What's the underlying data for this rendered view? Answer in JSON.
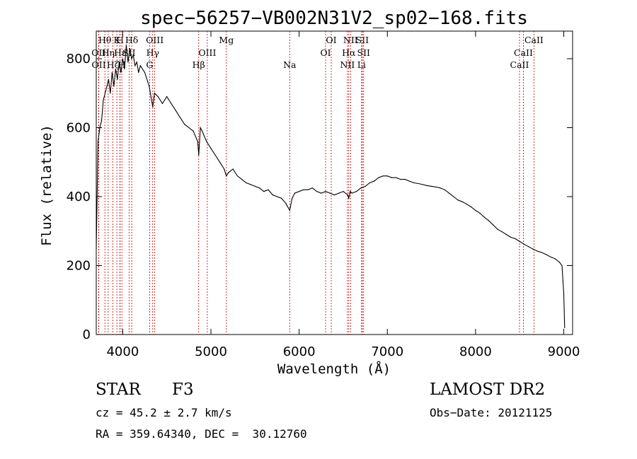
{
  "chart_data": {
    "type": "line",
    "title": "spec−56257−VB002N31V2_sp02−168.fits",
    "xlabel": "Wavelength (Å)",
    "ylabel": "Flux (relative)",
    "xlim": [
      3700,
      9100
    ],
    "ylim": [
      0,
      880
    ],
    "xticks": [
      4000,
      5000,
      6000,
      7000,
      8000,
      9000
    ],
    "yticks": [
      0,
      200,
      400,
      600,
      800
    ],
    "grid": false,
    "series": [
      {
        "x": [
          3700,
          3720,
          3740,
          3760,
          3780,
          3800,
          3820,
          3840,
          3860,
          3880,
          3900,
          3920,
          3940,
          3960,
          3980,
          4000,
          4020,
          4040,
          4060,
          4080,
          4100,
          4120,
          4140,
          4160,
          4180,
          4200,
          4250,
          4300,
          4340,
          4360,
          4400,
          4450,
          4500,
          4550,
          4600,
          4650,
          4700,
          4750,
          4800,
          4850,
          4862,
          4880,
          4900,
          4950,
          5000,
          5050,
          5100,
          5150,
          5175,
          5200,
          5250,
          5300,
          5350,
          5400,
          5450,
          5500,
          5550,
          5600,
          5650,
          5700,
          5750,
          5800,
          5850,
          5893,
          5920,
          5950,
          6000,
          6050,
          6100,
          6150,
          6200,
          6250,
          6300,
          6350,
          6400,
          6450,
          6500,
          6550,
          6563,
          6580,
          6600,
          6650,
          6700,
          6750,
          6800,
          6850,
          6900,
          6950,
          7000,
          7050,
          7100,
          7150,
          7200,
          7250,
          7300,
          7350,
          7400,
          7450,
          7500,
          7550,
          7600,
          7650,
          7700,
          7750,
          7800,
          7850,
          7900,
          7950,
          8000,
          8050,
          8100,
          8150,
          8200,
          8250,
          8300,
          8350,
          8400,
          8450,
          8500,
          8550,
          8600,
          8650,
          8700,
          8750,
          8800,
          8850,
          8900,
          8950,
          8980,
          9000,
          9010
        ],
        "y": [
          250,
          560,
          600,
          620,
          680,
          700,
          720,
          740,
          700,
          760,
          720,
          770,
          740,
          790,
          760,
          800,
          770,
          840,
          790,
          830,
          800,
          810,
          780,
          790,
          760,
          780,
          760,
          720,
          660,
          700,
          690,
          670,
          690,
          670,
          650,
          630,
          610,
          600,
          590,
          560,
          520,
          600,
          590,
          560,
          540,
          520,
          500,
          480,
          460,
          470,
          480,
          460,
          450,
          440,
          435,
          430,
          425,
          415,
          420,
          405,
          400,
          395,
          380,
          360,
          395,
          410,
          415,
          420,
          420,
          425,
          415,
          410,
          415,
          410,
          405,
          410,
          415,
          405,
          395,
          415,
          410,
          415,
          425,
          430,
          440,
          445,
          455,
          460,
          460,
          455,
          455,
          450,
          450,
          445,
          440,
          438,
          435,
          432,
          430,
          428,
          425,
          420,
          410,
          400,
          390,
          385,
          378,
          370,
          360,
          352,
          340,
          330,
          318,
          305,
          298,
          290,
          282,
          278,
          270,
          262,
          255,
          248,
          242,
          238,
          232,
          225,
          220,
          210,
          200,
          120,
          20
        ]
      }
    ],
    "line_markers": [
      {
        "label": "Hθ",
        "wl": 3798,
        "row": 1
      },
      {
        "label": "K",
        "wl": 3934,
        "row": 1
      },
      {
        "label": "H",
        "wl": 3969,
        "row": 1
      },
      {
        "label": "Hδ",
        "wl": 4102,
        "row": 1
      },
      {
        "label": "OII",
        "wl": 3727,
        "row": 2
      },
      {
        "label": "Hη",
        "wl": 3835,
        "row": 2
      },
      {
        "label": "Hε",
        "wl": 3970,
        "row": 2
      },
      {
        "label": "SII",
        "wl": 4072,
        "row": 2
      },
      {
        "label": "OII",
        "wl": 3729,
        "row": 3
      },
      {
        "label": "Hζ",
        "wl": 3889,
        "row": 3
      },
      {
        "label": "H",
        "wl": 3990,
        "row": 3
      },
      {
        "label": "OIII",
        "wl": 4363,
        "row": 1
      },
      {
        "label": "Hγ",
        "wl": 4340,
        "row": 2
      },
      {
        "label": "G",
        "wl": 4305,
        "row": 3
      },
      {
        "label": "OIII",
        "wl": 4959,
        "row": 2
      },
      {
        "label": "Hβ",
        "wl": 4861,
        "row": 3
      },
      {
        "label": "Mg",
        "wl": 5175,
        "row": 1
      },
      {
        "label": "Na",
        "wl": 5893,
        "row": 3
      },
      {
        "label": "OI",
        "wl": 6364,
        "row": 1
      },
      {
        "label": "OI",
        "wl": 6300,
        "row": 2
      },
      {
        "label": "NII",
        "wl": 6583,
        "row": 1
      },
      {
        "label": "SII",
        "wl": 6716,
        "row": 1
      },
      {
        "label": "Hα",
        "wl": 6563,
        "row": 2
      },
      {
        "label": "SII",
        "wl": 6731,
        "row": 2
      },
      {
        "label": "NII",
        "wl": 6548,
        "row": 3
      },
      {
        "label": "Li",
        "wl": 6708,
        "row": 3
      },
      {
        "label": "CaII",
        "wl": 8662,
        "row": 1
      },
      {
        "label": "CaII",
        "wl": 8542,
        "row": 2
      },
      {
        "label": "CaII",
        "wl": 8498,
        "row": 3
      }
    ]
  },
  "info": {
    "object_class": "STAR",
    "subclass": "F3",
    "survey": "LAMOST DR2",
    "cz": "cz = 45.2 ± 2.7 km/s",
    "obs_date": "Obs−Date: 20121125",
    "coords": "RA = 359.64340, DEC =  30.12760"
  }
}
